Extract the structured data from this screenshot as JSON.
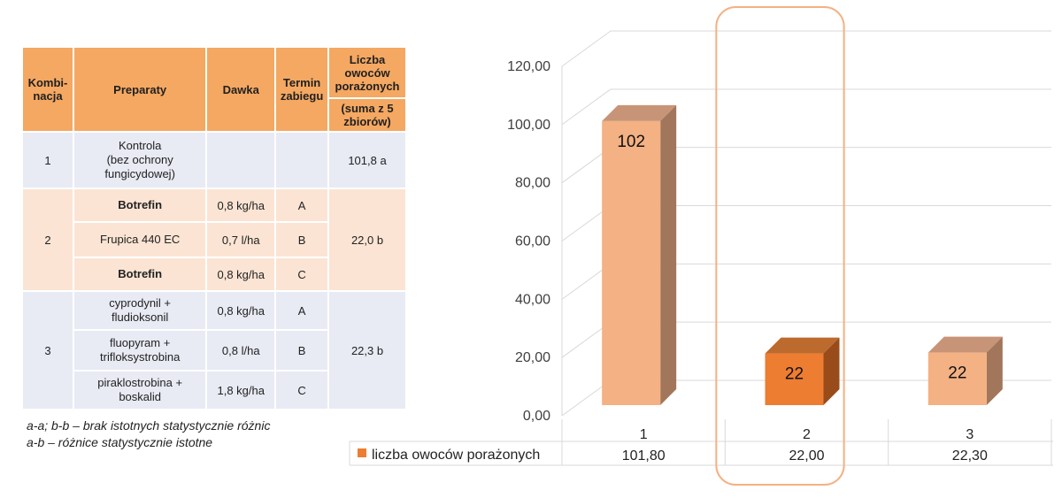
{
  "table": {
    "headers": {
      "kombinacja": "Kombi-\nnacja",
      "preparaty": "Preparaty",
      "dawka": "Dawka",
      "termin": "Termin zabiegu",
      "liczba": "Liczba owoców porażonych",
      "liczba_sub": "(suma z 5 zbiorów)"
    },
    "groups": [
      {
        "kombinacja": "1",
        "wynik": "101,8 a",
        "rows": [
          {
            "preparat": "Kontrola\n(bez ochrony fungicydowej)",
            "dawka": "",
            "termin": "",
            "bold": false
          }
        ]
      },
      {
        "kombinacja": "2",
        "wynik": "22,0 b",
        "rows": [
          {
            "preparat": "Botrefin",
            "dawka": "0,8 kg/ha",
            "termin": "A",
            "bold": true
          },
          {
            "preparat": "Frupica 440 EC",
            "dawka": "0,7 l/ha",
            "termin": "B",
            "bold": false
          },
          {
            "preparat": "Botrefin",
            "dawka": "0,8 kg/ha",
            "termin": "C",
            "bold": true
          }
        ]
      },
      {
        "kombinacja": "3",
        "wynik": "22,3 b",
        "rows": [
          {
            "preparat": "cyprodynil +\nfludioksonil",
            "dawka": "0,8 kg/ha",
            "termin": "A",
            "bold": false
          },
          {
            "preparat": "fluopyram +\ntrifloksystrobina",
            "dawka": "0,8 l/ha",
            "termin": "B",
            "bold": false
          },
          {
            "preparat": "piraklostrobina +\nboskalid",
            "dawka": "1,8 kg/ha",
            "termin": "C",
            "bold": false
          }
        ]
      }
    ]
  },
  "notes": [
    "a-a; b-b – brak istotnych statystycznie różnic",
    "a-b – różnice statystycznie istotne"
  ],
  "chart_data": {
    "type": "bar",
    "three_d": true,
    "categories": [
      "1",
      "2",
      "3"
    ],
    "series": [
      {
        "name": "liczba owoców porażonych",
        "values": [
          101.8,
          22.0,
          22.3
        ],
        "data_labels": [
          "102",
          "22",
          "22"
        ]
      }
    ],
    "highlighted_category": "2",
    "ylim": [
      0,
      120
    ],
    "yticks": [
      "0,00",
      "20,00",
      "40,00",
      "60,00",
      "80,00",
      "100,00",
      "120,00"
    ],
    "data_table_values": [
      "101,80",
      "22,00",
      "22,30"
    ],
    "grid": true,
    "legend": "bottom-left in data table",
    "colors": {
      "bar_front": "#f4b183",
      "bar_front_highlight": "#ed7d31",
      "bar_top": "#c89478",
      "bar_top_highlight": "#bd6a2e",
      "bar_side": "#a2765a",
      "bar_side_highlight": "#9a4b1a",
      "legend_key": "#ed7d31",
      "highlight_box": "#f4b183",
      "grid": "#d9d9d9"
    }
  }
}
